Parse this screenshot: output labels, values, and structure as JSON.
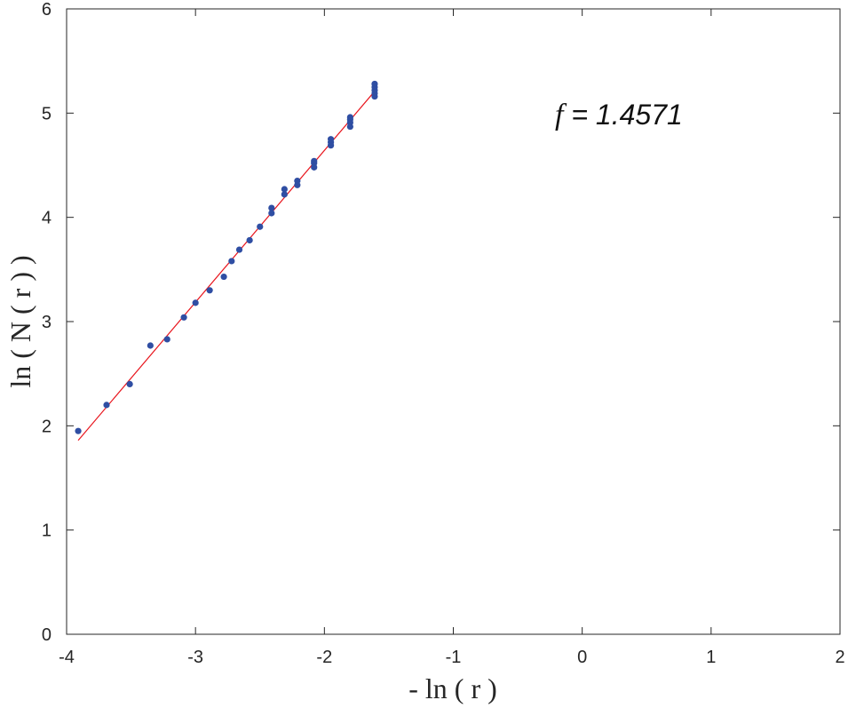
{
  "chart_data": {
    "type": "scatter",
    "xlabel": "- ln ( r )",
    "ylabel": "ln ( N ( r ) )",
    "xlim": [
      -4,
      2
    ],
    "ylim": [
      0,
      6
    ],
    "xticks": [
      "-4",
      "-3",
      "-2",
      "-1",
      "0",
      "1",
      "2"
    ],
    "yticks": [
      "0",
      "1",
      "2",
      "3",
      "4",
      "5",
      "6"
    ],
    "grid": false,
    "annotation": {
      "prefix": "f",
      "text": " = 1.4571"
    },
    "point_color": "#2f4ea3",
    "fit_color": "#e8141c",
    "points": [
      {
        "x": -3.91,
        "y": 1.95
      },
      {
        "x": -3.69,
        "y": 2.2
      },
      {
        "x": -3.51,
        "y": 2.4
      },
      {
        "x": -3.35,
        "y": 2.77
      },
      {
        "x": -3.22,
        "y": 2.83
      },
      {
        "x": -3.09,
        "y": 3.04
      },
      {
        "x": -3.0,
        "y": 3.18
      },
      {
        "x": -2.89,
        "y": 3.3
      },
      {
        "x": -2.78,
        "y": 3.43
      },
      {
        "x": -2.72,
        "y": 3.58
      },
      {
        "x": -2.66,
        "y": 3.69
      },
      {
        "x": -2.58,
        "y": 3.78
      },
      {
        "x": -2.5,
        "y": 3.91
      },
      {
        "x": -2.41,
        "y": 4.04
      },
      {
        "x": -2.41,
        "y": 4.09
      },
      {
        "x": -2.31,
        "y": 4.22
      },
      {
        "x": -2.31,
        "y": 4.27
      },
      {
        "x": -2.21,
        "y": 4.31
      },
      {
        "x": -2.21,
        "y": 4.35
      },
      {
        "x": -2.08,
        "y": 4.48
      },
      {
        "x": -2.08,
        "y": 4.52
      },
      {
        "x": -2.08,
        "y": 4.54
      },
      {
        "x": -1.95,
        "y": 4.69
      },
      {
        "x": -1.95,
        "y": 4.72
      },
      {
        "x": -1.95,
        "y": 4.75
      },
      {
        "x": -1.8,
        "y": 4.87
      },
      {
        "x": -1.8,
        "y": 4.91
      },
      {
        "x": -1.8,
        "y": 4.94
      },
      {
        "x": -1.8,
        "y": 4.96
      },
      {
        "x": -1.61,
        "y": 5.16
      },
      {
        "x": -1.61,
        "y": 5.19
      },
      {
        "x": -1.61,
        "y": 5.22
      },
      {
        "x": -1.61,
        "y": 5.25
      },
      {
        "x": -1.61,
        "y": 5.28
      }
    ],
    "fit_line": {
      "x": [
        -3.91,
        -1.61
      ],
      "y": [
        1.86,
        5.21
      ]
    }
  }
}
